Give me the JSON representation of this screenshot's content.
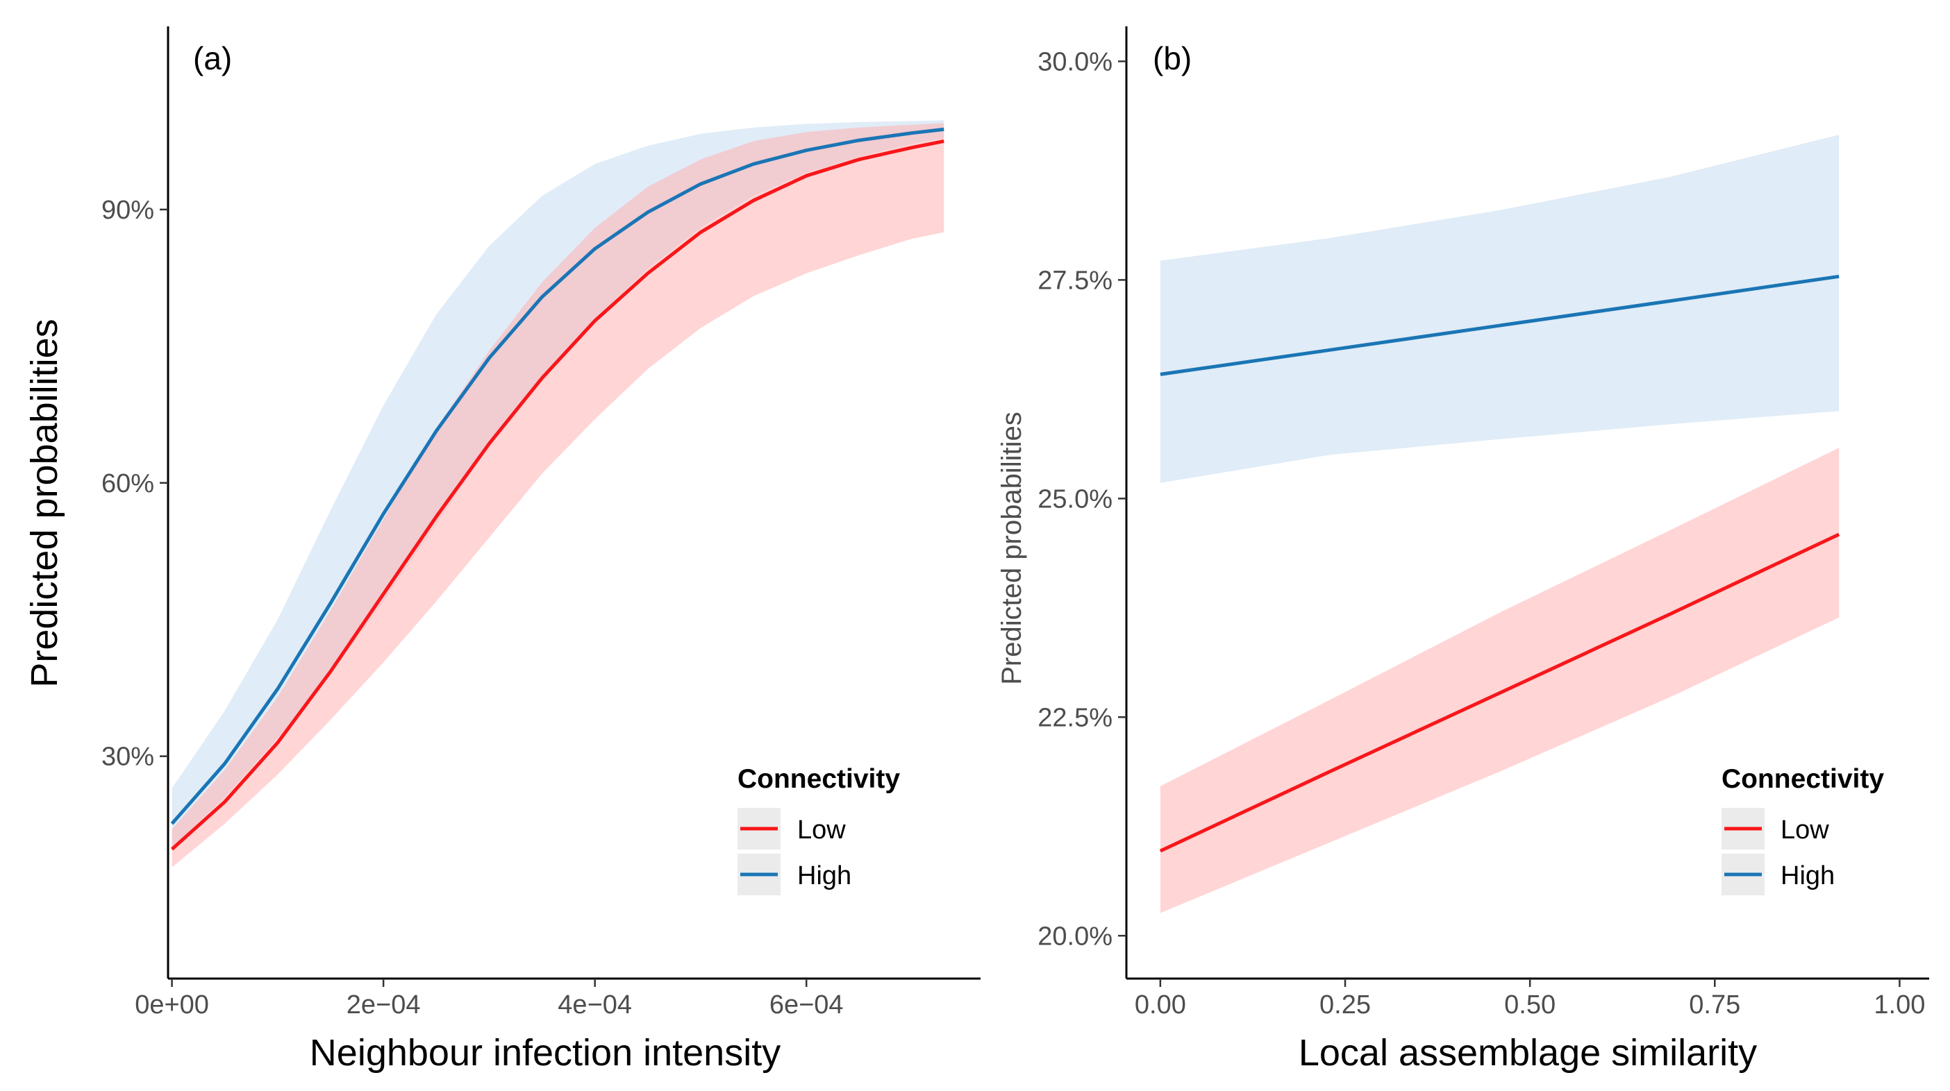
{
  "chart_data": [
    {
      "type": "line",
      "panel_label": "(a)",
      "xlabel": "Neighbour infection intensity",
      "ylabel": "Predicted probabilities",
      "xlim": [
        -3.67e-06,
        0.0007647
      ],
      "ylim": [
        0.056,
        1.101
      ],
      "xticks": [
        0,
        0.0002,
        0.0004,
        0.0006
      ],
      "xtick_labels": [
        "0e+00",
        "2e−04",
        "4e−04",
        "6e−04"
      ],
      "yticks": [
        0.3,
        0.6,
        0.9
      ],
      "ytick_labels": [
        "30%",
        "60%",
        "90%"
      ],
      "grid": false,
      "legend": {
        "title": "Connectivity",
        "position": "bottom-right",
        "entries": [
          "Low",
          "High"
        ]
      },
      "x": [
        0,
        5e-05,
        0.0001,
        0.00015,
        0.0002,
        0.00025,
        0.0003,
        0.00035,
        0.0004,
        0.00045,
        0.0005,
        0.00055,
        0.0006,
        0.00065,
        0.0007,
        0.00073
      ],
      "series": [
        {
          "name": "Low",
          "color": "#f8161a",
          "ribbon_color": "#ffb3b3",
          "values": [
            0.198,
            0.25,
            0.315,
            0.393,
            0.478,
            0.563,
            0.643,
            0.715,
            0.778,
            0.83,
            0.875,
            0.91,
            0.937,
            0.955,
            0.968,
            0.975
          ],
          "lower": [
            0.178,
            0.226,
            0.28,
            0.34,
            0.403,
            0.47,
            0.54,
            0.61,
            0.67,
            0.725,
            0.77,
            0.805,
            0.83,
            0.85,
            0.868,
            0.875
          ],
          "upper": [
            0.22,
            0.285,
            0.365,
            0.46,
            0.56,
            0.66,
            0.745,
            0.82,
            0.88,
            0.925,
            0.955,
            0.975,
            0.985,
            0.99,
            0.993,
            0.995
          ]
        },
        {
          "name": "High",
          "color": "#1a75b5",
          "ribbon_color": "#c6dcf0",
          "values": [
            0.226,
            0.292,
            0.374,
            0.468,
            0.566,
            0.657,
            0.737,
            0.804,
            0.857,
            0.897,
            0.928,
            0.95,
            0.965,
            0.976,
            0.984,
            0.988
          ],
          "lower": [
            0.2,
            0.255,
            0.32,
            0.39,
            0.47,
            0.555,
            0.64,
            0.715,
            0.78,
            0.835,
            0.88,
            0.915,
            0.94,
            0.958,
            0.972,
            0.978
          ],
          "upper": [
            0.265,
            0.35,
            0.45,
            0.57,
            0.685,
            0.785,
            0.86,
            0.915,
            0.95,
            0.97,
            0.983,
            0.99,
            0.994,
            0.996,
            0.997,
            0.998
          ]
        }
      ]
    },
    {
      "type": "line",
      "panel_label": "(b)",
      "xlabel": "Local assemblage similarity",
      "ylabel": "Predicted probabilities",
      "xlim": [
        -0.0459,
        1.04
      ],
      "ylim": [
        0.1951,
        0.304
      ],
      "xticks": [
        0,
        0.25,
        0.5,
        0.75,
        1.0
      ],
      "xtick_labels": [
        "0.00",
        "0.25",
        "0.50",
        "0.75",
        "1.00"
      ],
      "yticks": [
        0.2,
        0.225,
        0.25,
        0.275,
        0.3
      ],
      "ytick_labels": [
        "20.0%",
        "22.5%",
        "25.0%",
        "27.5%",
        "30.0%"
      ],
      "grid": false,
      "legend": {
        "title": "Connectivity",
        "position": "bottom-right",
        "entries": [
          "Low",
          "High"
        ]
      },
      "x": [
        0,
        0.23,
        0.46,
        0.69,
        0.918
      ],
      "series": [
        {
          "name": "Low",
          "color": "#f8161a",
          "ribbon_color": "#ffb3b3",
          "values": [
            0.2097,
            0.2188,
            0.2278,
            0.2368,
            0.2459
          ],
          "lower": [
            0.2026,
            0.2107,
            0.2188,
            0.2273,
            0.2364
          ],
          "upper": [
            0.2171,
            0.227,
            0.237,
            0.2464,
            0.2558
          ]
        },
        {
          "name": "High",
          "color": "#1a75b5",
          "ribbon_color": "#c6dcf0",
          "values": [
            0.2642,
            0.267,
            0.2698,
            0.2726,
            0.2754
          ],
          "lower": [
            0.2518,
            0.255,
            0.2568,
            0.2585,
            0.26
          ],
          "upper": [
            0.2772,
            0.2798,
            0.283,
            0.2868,
            0.2916
          ]
        }
      ]
    }
  ]
}
